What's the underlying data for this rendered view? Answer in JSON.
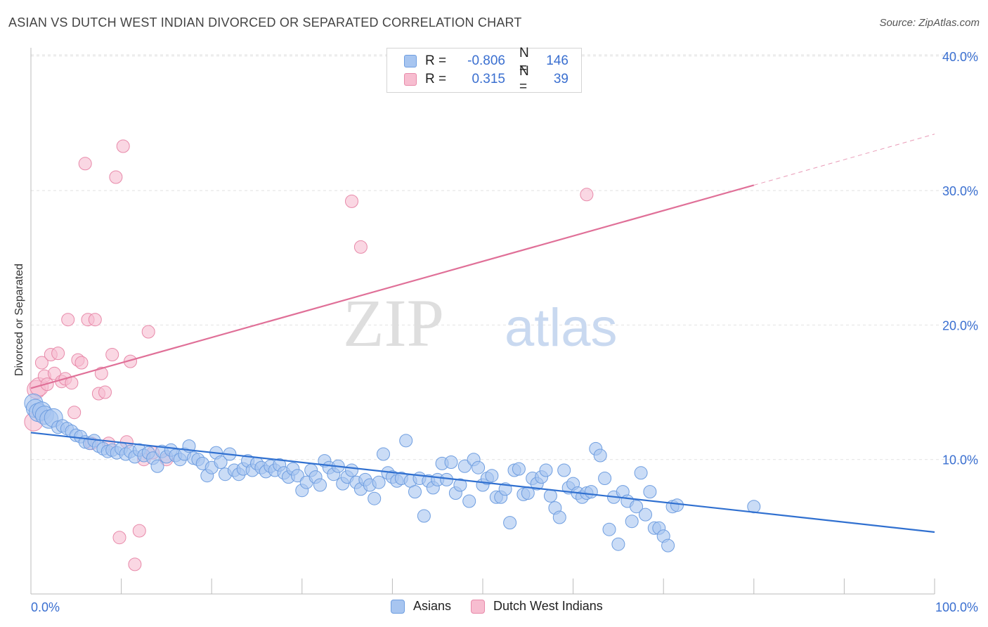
{
  "header": {
    "title": "ASIAN VS DUTCH WEST INDIAN DIVORCED OR SEPARATED CORRELATION CHART",
    "source": "Source: ZipAtlas.com"
  },
  "watermark": {
    "zip": "ZIP",
    "atlas": "atlas"
  },
  "legend": {
    "rows": [
      {
        "r_label": "R =",
        "r_value": "-0.806",
        "n_label": "N =",
        "n_value": "146",
        "color": "#a7c5f0",
        "border": "#6f9ee0"
      },
      {
        "r_label": "R =",
        "r_value": "0.315",
        "n_label": "N =",
        "n_value": "39",
        "color": "#f7bdd0",
        "border": "#e88aaa"
      }
    ]
  },
  "bottom_legend": [
    {
      "label": "Asians",
      "color": "#a7c5f0",
      "border": "#6f9ee0"
    },
    {
      "label": "Dutch West Indians",
      "color": "#f7bdd0",
      "border": "#e88aaa"
    }
  ],
  "chart_data": {
    "type": "scatter",
    "title": "ASIAN VS DUTCH WEST INDIAN DIVORCED OR SEPARATED CORRELATION CHART",
    "ylabel": "Divorced or Separated",
    "xlabel": "",
    "x_ticks": [
      "0.0%",
      "100.0%"
    ],
    "y_ticks": [
      "10.0%",
      "20.0%",
      "30.0%",
      "40.0%"
    ],
    "xlim": [
      0,
      100
    ],
    "ylim": [
      0,
      41
    ],
    "grid": true,
    "legend_position": "top-center",
    "series": [
      {
        "name": "Asians",
        "color": "#a7c5f0",
        "stroke": "#6f9ee0",
        "trend": {
          "x0": 0,
          "y0": 12.0,
          "x1": 100,
          "y1": 4.6,
          "color": "#3070d0"
        },
        "points": [
          [
            0.3,
            14.2
          ],
          [
            0.5,
            13.8
          ],
          [
            0.8,
            13.5
          ],
          [
            1.2,
            13.6
          ],
          [
            1.5,
            13.3
          ],
          [
            2,
            13.0
          ],
          [
            2.5,
            13.1
          ],
          [
            3,
            12.4
          ],
          [
            3.5,
            12.5
          ],
          [
            4,
            12.3
          ],
          [
            4.5,
            12.1
          ],
          [
            5,
            11.8
          ],
          [
            5.5,
            11.7
          ],
          [
            6,
            11.3
          ],
          [
            6.5,
            11.2
          ],
          [
            7,
            11.4
          ],
          [
            7.5,
            11.0
          ],
          [
            8,
            10.8
          ],
          [
            8.5,
            10.6
          ],
          [
            9,
            10.7
          ],
          [
            9.5,
            10.5
          ],
          [
            10,
            10.8
          ],
          [
            10.5,
            10.4
          ],
          [
            11,
            10.6
          ],
          [
            11.5,
            10.2
          ],
          [
            12,
            10.7
          ],
          [
            12.5,
            10.3
          ],
          [
            13,
            10.5
          ],
          [
            13.5,
            10.1
          ],
          [
            14,
            9.5
          ],
          [
            14.5,
            10.6
          ],
          [
            15,
            10.2
          ],
          [
            15.5,
            10.7
          ],
          [
            16,
            10.3
          ],
          [
            16.5,
            10.0
          ],
          [
            17,
            10.4
          ],
          [
            17.5,
            11.0
          ],
          [
            18,
            10.1
          ],
          [
            18.5,
            10.0
          ],
          [
            19,
            9.7
          ],
          [
            19.5,
            8.8
          ],
          [
            20,
            9.4
          ],
          [
            20.5,
            10.5
          ],
          [
            21,
            9.8
          ],
          [
            21.5,
            8.9
          ],
          [
            22,
            10.4
          ],
          [
            22.5,
            9.2
          ],
          [
            23,
            8.9
          ],
          [
            23.5,
            9.3
          ],
          [
            24,
            9.9
          ],
          [
            24.5,
            9.2
          ],
          [
            25,
            9.7
          ],
          [
            25.5,
            9.4
          ],
          [
            26,
            9.1
          ],
          [
            26.5,
            9.5
          ],
          [
            27,
            9.2
          ],
          [
            27.5,
            9.6
          ],
          [
            28,
            9.0
          ],
          [
            28.5,
            8.7
          ],
          [
            29,
            9.3
          ],
          [
            29.5,
            8.8
          ],
          [
            30,
            7.7
          ],
          [
            30.5,
            8.3
          ],
          [
            31,
            9.2
          ],
          [
            31.5,
            8.7
          ],
          [
            32,
            8.1
          ],
          [
            32.5,
            9.9
          ],
          [
            33,
            9.4
          ],
          [
            33.5,
            8.9
          ],
          [
            34,
            9.5
          ],
          [
            34.5,
            8.2
          ],
          [
            35,
            8.7
          ],
          [
            35.5,
            9.2
          ],
          [
            36,
            8.3
          ],
          [
            36.5,
            7.8
          ],
          [
            37,
            8.5
          ],
          [
            37.5,
            8.1
          ],
          [
            38,
            7.1
          ],
          [
            38.5,
            8.3
          ],
          [
            39,
            10.4
          ],
          [
            39.5,
            9.0
          ],
          [
            40,
            8.7
          ],
          [
            40.5,
            8.4
          ],
          [
            41,
            8.6
          ],
          [
            41.5,
            11.4
          ],
          [
            42,
            8.4
          ],
          [
            42.5,
            7.6
          ],
          [
            43,
            8.6
          ],
          [
            43.5,
            5.8
          ],
          [
            44,
            8.4
          ],
          [
            44.5,
            7.9
          ],
          [
            45,
            8.5
          ],
          [
            45.5,
            9.7
          ],
          [
            46,
            8.5
          ],
          [
            46.5,
            9.8
          ],
          [
            47,
            7.5
          ],
          [
            47.5,
            8.1
          ],
          [
            48,
            9.5
          ],
          [
            48.5,
            6.9
          ],
          [
            49,
            10.0
          ],
          [
            49.5,
            9.4
          ],
          [
            50,
            8.1
          ],
          [
            50.5,
            8.6
          ],
          [
            51,
            8.8
          ],
          [
            51.5,
            7.2
          ],
          [
            52,
            7.2
          ],
          [
            52.5,
            7.8
          ],
          [
            53,
            5.3
          ],
          [
            53.5,
            9.2
          ],
          [
            54,
            9.3
          ],
          [
            54.5,
            7.4
          ],
          [
            55,
            7.5
          ],
          [
            55.5,
            8.6
          ],
          [
            56,
            8.2
          ],
          [
            56.5,
            8.7
          ],
          [
            57,
            9.2
          ],
          [
            57.5,
            7.3
          ],
          [
            58,
            6.4
          ],
          [
            58.5,
            5.7
          ],
          [
            59,
            9.2
          ],
          [
            59.5,
            7.9
          ],
          [
            60,
            8.2
          ],
          [
            60.5,
            7.5
          ],
          [
            61,
            7.2
          ],
          [
            61.5,
            7.5
          ],
          [
            62,
            7.6
          ],
          [
            62.5,
            10.8
          ],
          [
            63,
            10.3
          ],
          [
            63.5,
            8.6
          ],
          [
            64,
            4.8
          ],
          [
            64.5,
            7.2
          ],
          [
            65,
            3.7
          ],
          [
            65.5,
            7.6
          ],
          [
            66,
            6.9
          ],
          [
            66.5,
            5.4
          ],
          [
            67,
            6.5
          ],
          [
            67.5,
            9.0
          ],
          [
            68,
            5.9
          ],
          [
            68.5,
            7.6
          ],
          [
            69,
            4.9
          ],
          [
            69.5,
            4.9
          ],
          [
            70,
            4.3
          ],
          [
            70.5,
            3.6
          ],
          [
            71,
            6.5
          ],
          [
            71.5,
            6.6
          ],
          [
            80,
            6.5
          ]
        ]
      },
      {
        "name": "Dutch West Indians",
        "color": "#f7bdd0",
        "stroke": "#e88aaa",
        "trend": {
          "x0": 0,
          "y0": 15.3,
          "x1": 80,
          "y1": 30.4,
          "dash_to_x": 100,
          "dash_to_y": 34.2,
          "color": "#e07098"
        },
        "points": [
          [
            0.3,
            12.8
          ],
          [
            0.6,
            15.2
          ],
          [
            0.9,
            15.4
          ],
          [
            1.2,
            17.2
          ],
          [
            1.5,
            16.2
          ],
          [
            1.8,
            15.6
          ],
          [
            2.2,
            17.8
          ],
          [
            2.6,
            16.4
          ],
          [
            3,
            17.9
          ],
          [
            3.4,
            15.8
          ],
          [
            3.8,
            16.0
          ],
          [
            4.1,
            20.4
          ],
          [
            4.5,
            15.7
          ],
          [
            4.8,
            13.5
          ],
          [
            5.2,
            17.4
          ],
          [
            5.6,
            17.2
          ],
          [
            6,
            32.0
          ],
          [
            6.3,
            20.4
          ],
          [
            6.7,
            11.2
          ],
          [
            7.1,
            20.4
          ],
          [
            7.5,
            14.9
          ],
          [
            7.8,
            16.4
          ],
          [
            8.2,
            15.0
          ],
          [
            8.6,
            11.2
          ],
          [
            9,
            17.8
          ],
          [
            9.4,
            31.0
          ],
          [
            9.8,
            4.2
          ],
          [
            10.2,
            33.3
          ],
          [
            10.6,
            11.3
          ],
          [
            11,
            17.3
          ],
          [
            11.5,
            2.2
          ],
          [
            12,
            4.7
          ],
          [
            12.5,
            10.0
          ],
          [
            13,
            19.5
          ],
          [
            13.5,
            10.5
          ],
          [
            15,
            10.0
          ],
          [
            35.5,
            29.2
          ],
          [
            36.5,
            25.8
          ],
          [
            61.5,
            29.7
          ]
        ]
      }
    ]
  }
}
